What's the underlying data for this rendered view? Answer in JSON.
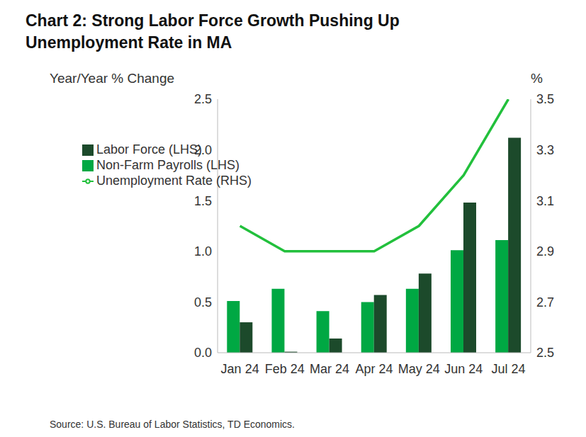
{
  "chart_data": {
    "type": "bar",
    "title": "Chart 2: Strong Labor Force Growth Pushing Up Unemployment Rate in MA",
    "y_label": "Year/Year % Change",
    "y2_label": "%",
    "source": "Source: U.S. Bureau of Labor Statistics, TD Economics.",
    "categories": [
      "Jan 24",
      "Feb 24",
      "Mar 24",
      "Apr 24",
      "May 24",
      "Jun 24",
      "Jul 24"
    ],
    "series": [
      {
        "name": "Non-Farm Payrolls (LHS)",
        "type": "bar",
        "color": "#00a843",
        "values": [
          0.51,
          0.63,
          0.41,
          0.5,
          0.63,
          1.01,
          1.11
        ]
      },
      {
        "name": "Labor Force (LHS)",
        "type": "bar",
        "color": "#1c4a2b",
        "values": [
          0.3,
          0.01,
          0.14,
          0.57,
          0.78,
          1.48,
          2.12
        ]
      },
      {
        "name": "Unemployment Rate (RHS)",
        "type": "line",
        "axis": "y2",
        "color": "#22c03c",
        "values": [
          3.0,
          2.9,
          2.9,
          2.9,
          3.0,
          3.2,
          3.5
        ]
      }
    ],
    "ylim": [
      0,
      2.5
    ],
    "yticks": [
      {
        "value": 0,
        "label": "0.0"
      },
      {
        "value": 0.5,
        "label": "0.5"
      },
      {
        "value": 1,
        "label": "1.0"
      },
      {
        "value": 1.5,
        "label": "1.5"
      },
      {
        "value": 2,
        "label": "2.0"
      },
      {
        "value": 2.5,
        "label": "2.5"
      }
    ],
    "y2lim": [
      2.5,
      3.5
    ],
    "y2ticks": [
      2.5,
      2.7,
      2.9,
      3.1,
      3.3,
      3.5
    ],
    "grid": false,
    "legend": "upper left"
  }
}
